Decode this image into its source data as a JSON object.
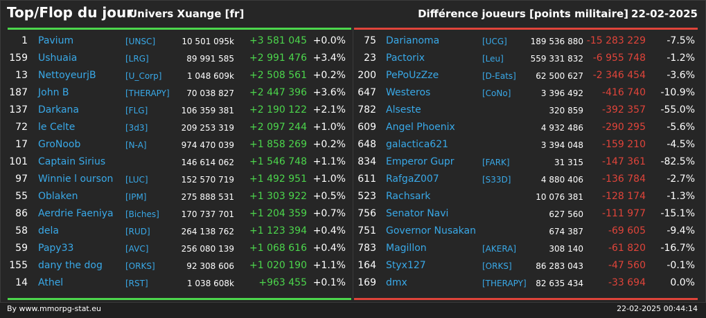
{
  "header": {
    "title": "Top/Flop du jour",
    "universe": "Univers Xuange [fr]",
    "category": "Différence joueurs [points militaire]",
    "date": "22-02-2025"
  },
  "colors": {
    "gain": "#4cd64c",
    "loss": "#e0443a",
    "link": "#39a9e8"
  },
  "top": [
    {
      "rank": "1",
      "name": "Pavium",
      "ally": "[UNSC]",
      "points": "10 501 095k",
      "diff": "+3 581 045",
      "pct": "+0.0%"
    },
    {
      "rank": "159",
      "name": "Ushuaia",
      "ally": "[LRG]",
      "points": "89 991 585",
      "diff": "+2 991 476",
      "pct": "+3.4%"
    },
    {
      "rank": "13",
      "name": "NettoyeurjB",
      "ally": "[U_Corp]",
      "points": "1 048 609k",
      "diff": "+2 508 561",
      "pct": "+0.2%"
    },
    {
      "rank": "187",
      "name": "John B",
      "ally": "[THERAPY]",
      "points": "70 038 827",
      "diff": "+2 447 396",
      "pct": "+3.6%"
    },
    {
      "rank": "137",
      "name": "Darkana",
      "ally": "[FLG]",
      "points": "106 359 381",
      "diff": "+2 190 122",
      "pct": "+2.1%"
    },
    {
      "rank": "72",
      "name": "le Celte",
      "ally": "[3d3]",
      "points": "209 253 319",
      "diff": "+2 097 244",
      "pct": "+1.0%"
    },
    {
      "rank": "17",
      "name": "GroNoob",
      "ally": "[N-A]",
      "points": "974 470 039",
      "diff": "+1 858 269",
      "pct": "+0.2%"
    },
    {
      "rank": "101",
      "name": "Captain Sirius",
      "ally": "",
      "points": "146 614 062",
      "diff": "+1 546 748",
      "pct": "+1.1%"
    },
    {
      "rank": "97",
      "name": "Winnie l ourson",
      "ally": "[LUC]",
      "points": "152 570 719",
      "diff": "+1 492 951",
      "pct": "+1.0%"
    },
    {
      "rank": "55",
      "name": "Oblaken",
      "ally": "[IPM]",
      "points": "275 888 531",
      "diff": "+1 303 922",
      "pct": "+0.5%"
    },
    {
      "rank": "86",
      "name": "Aerdrie Faeniya",
      "ally": "[Biches]",
      "points": "170 737 701",
      "diff": "+1 204 359",
      "pct": "+0.7%"
    },
    {
      "rank": "58",
      "name": "dela",
      "ally": "[RUD]",
      "points": "264 138 762",
      "diff": "+1 123 394",
      "pct": "+0.4%"
    },
    {
      "rank": "59",
      "name": "Papy33",
      "ally": "[AVC]",
      "points": "256 080 139",
      "diff": "+1 068 616",
      "pct": "+0.4%"
    },
    {
      "rank": "155",
      "name": "dany the dog",
      "ally": "[ORKS]",
      "points": "92 308 606",
      "diff": "+1 020 190",
      "pct": "+1.1%"
    },
    {
      "rank": "14",
      "name": "Athel",
      "ally": "[RST]",
      "points": "1 038 608k",
      "diff": "+963 455",
      "pct": "+0.1%"
    }
  ],
  "flop": [
    {
      "rank": "75",
      "name": "Darianoma",
      "ally": "[UCG]",
      "points": "189 536 880",
      "diff": "-15 283 229",
      "pct": "-7.5%"
    },
    {
      "rank": "23",
      "name": "Pactorix",
      "ally": "[Leu]",
      "points": "559 331 832",
      "diff": "-6 955 748",
      "pct": "-1.2%"
    },
    {
      "rank": "200",
      "name": "PePoUzZze",
      "ally": "[D-Eats]",
      "points": "62 500 627",
      "diff": "-2 346 454",
      "pct": "-3.6%"
    },
    {
      "rank": "647",
      "name": "Westeros",
      "ally": "[CoNo]",
      "points": "3 396 492",
      "diff": "-416 740",
      "pct": "-10.9%"
    },
    {
      "rank": "782",
      "name": "Alseste",
      "ally": "",
      "points": "320 859",
      "diff": "-392 357",
      "pct": "-55.0%"
    },
    {
      "rank": "609",
      "name": "Angel Phoenix",
      "ally": "",
      "points": "4 932 486",
      "diff": "-290 295",
      "pct": "-5.6%"
    },
    {
      "rank": "648",
      "name": "galactica621",
      "ally": "",
      "points": "3 394 048",
      "diff": "-159 210",
      "pct": "-4.5%"
    },
    {
      "rank": "834",
      "name": "Emperor Gupr",
      "ally": "[FARK]",
      "points": "31 315",
      "diff": "-147 361",
      "pct": "-82.5%"
    },
    {
      "rank": "611",
      "name": "RafgaZ007",
      "ally": "[S33D]",
      "points": "4 880 406",
      "diff": "-136 784",
      "pct": "-2.7%"
    },
    {
      "rank": "523",
      "name": "Rachsark",
      "ally": "",
      "points": "10 076 381",
      "diff": "-128 174",
      "pct": "-1.3%"
    },
    {
      "rank": "756",
      "name": "Senator Navi",
      "ally": "",
      "points": "627 560",
      "diff": "-111 977",
      "pct": "-15.1%"
    },
    {
      "rank": "751",
      "name": "Governor Nusakan",
      "ally": "",
      "points": "674 387",
      "diff": "-69 605",
      "pct": "-9.4%"
    },
    {
      "rank": "783",
      "name": "Magillon",
      "ally": "[AKERA]",
      "points": "308 140",
      "diff": "-61 820",
      "pct": "-16.7%"
    },
    {
      "rank": "164",
      "name": "Styx127",
      "ally": "[ORKS]",
      "points": "86 283 043",
      "diff": "-47 560",
      "pct": "-0.1%"
    },
    {
      "rank": "169",
      "name": "dmx",
      "ally": "[THERAPY]",
      "points": "82 635 434",
      "diff": "-33 694",
      "pct": "0.0%"
    }
  ],
  "footer": {
    "source": "By www.mmorpg-stat.eu",
    "timestamp": "22-02-2025 00:44:14"
  }
}
